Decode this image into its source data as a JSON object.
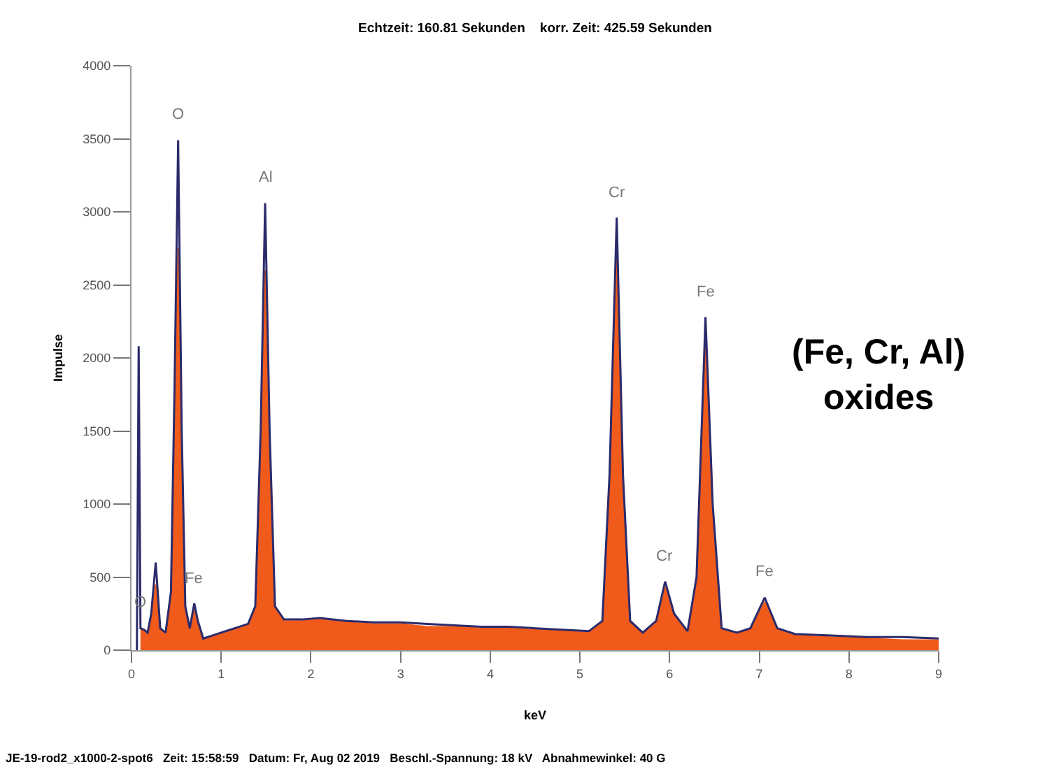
{
  "chart_data": {
    "type": "area",
    "title": "Echtzeit: 160.81 Sekunden    korr. Zeit: 425.59 Sekunden",
    "xlabel": "keV",
    "ylabel": "Impulse",
    "xlim": [
      0,
      9
    ],
    "xticks": [
      0,
      1,
      2,
      3,
      4,
      5,
      6,
      7,
      8,
      9
    ],
    "ylim": [
      0,
      4000
    ],
    "yticks": [
      0,
      500,
      1000,
      1500,
      2000,
      2500,
      3000,
      3500,
      4000
    ],
    "grid": false,
    "series": [
      {
        "type": "area",
        "color": "#f05a1a",
        "x": [
          0.1,
          0.14,
          0.18,
          0.22,
          0.27,
          0.32,
          0.38,
          0.44,
          0.48,
          0.52,
          0.56,
          0.6,
          0.65,
          0.7,
          0.74,
          0.8,
          0.9,
          1.0,
          1.1,
          1.2,
          1.3,
          1.38,
          1.44,
          1.49,
          1.54,
          1.6,
          1.7,
          1.9,
          2.1,
          2.4,
          2.7,
          3.0,
          3.3,
          3.6,
          3.9,
          4.2,
          4.5,
          4.8,
          5.1,
          5.25,
          5.33,
          5.41,
          5.48,
          5.56,
          5.7,
          5.85,
          5.95,
          6.05,
          6.2,
          6.3,
          6.4,
          6.48,
          6.58,
          6.75,
          6.9,
          7.06,
          7.2,
          7.4,
          7.8,
          8.2,
          8.6,
          9.0
        ],
        "values": [
          150,
          140,
          120,
          230,
          450,
          150,
          120,
          380,
          1600,
          2750,
          1400,
          290,
          150,
          300,
          190,
          80,
          90,
          110,
          130,
          150,
          170,
          290,
          1300,
          2600,
          1300,
          290,
          200,
          200,
          210,
          190,
          180,
          180,
          160,
          160,
          150,
          150,
          140,
          130,
          120,
          190,
          1150,
          2800,
          1150,
          190,
          110,
          190,
          430,
          240,
          120,
          480,
          2150,
          950,
          140,
          110,
          140,
          330,
          140,
          100,
          90,
          80,
          70,
          70
        ]
      },
      {
        "type": "line",
        "color": "#2b2b6b",
        "x": [
          0.06,
          0.08,
          0.1,
          0.14,
          0.18,
          0.22,
          0.27,
          0.32,
          0.38,
          0.44,
          0.48,
          0.52,
          0.56,
          0.6,
          0.65,
          0.7,
          0.74,
          0.8,
          0.9,
          1.0,
          1.1,
          1.2,
          1.3,
          1.38,
          1.44,
          1.49,
          1.54,
          1.6,
          1.7,
          1.9,
          2.1,
          2.4,
          2.7,
          3.0,
          3.3,
          3.6,
          3.9,
          4.2,
          4.5,
          4.8,
          5.1,
          5.25,
          5.33,
          5.41,
          5.48,
          5.56,
          5.7,
          5.85,
          5.95,
          6.05,
          6.2,
          6.3,
          6.4,
          6.48,
          6.58,
          6.75,
          6.9,
          7.06,
          7.2,
          7.4,
          7.8,
          8.2,
          8.6,
          9.0
        ],
        "values": [
          0,
          2080,
          150,
          140,
          120,
          250,
          600,
          150,
          120,
          400,
          1800,
          3490,
          1500,
          300,
          150,
          320,
          200,
          80,
          100,
          120,
          140,
          160,
          180,
          300,
          1500,
          3060,
          1500,
          300,
          210,
          210,
          220,
          200,
          190,
          190,
          180,
          170,
          160,
          160,
          150,
          140,
          130,
          200,
          1200,
          2960,
          1200,
          200,
          120,
          200,
          470,
          250,
          130,
          500,
          2280,
          1000,
          150,
          120,
          150,
          360,
          150,
          110,
          100,
          90,
          90,
          80
        ]
      }
    ],
    "annotations": [
      {
        "text": "O",
        "x": 0.52,
        "y": 3490
      },
      {
        "text": "Al",
        "x": 1.49,
        "y": 3060
      },
      {
        "text": "Cr",
        "x": 5.41,
        "y": 2960
      },
      {
        "text": "Fe",
        "x": 6.4,
        "y": 2280
      },
      {
        "text": "Cr",
        "x": 5.95,
        "y": 470
      },
      {
        "text": "Fe",
        "x": 7.06,
        "y": 360
      },
      {
        "text": "Fe",
        "x": 0.7,
        "y": 320
      },
      {
        "text": "O",
        "x": 0.1,
        "y": 150
      },
      "(Fe, Cr, Al)\noxides",
      "JE-19-rod2_x1000-2-spot6   Zeit: 15:58:59   Datum: Fr, Aug 02 2019   Beschl.-Spannung: 18 kV   Abnahmewinkel: 40 G"
    ]
  }
}
